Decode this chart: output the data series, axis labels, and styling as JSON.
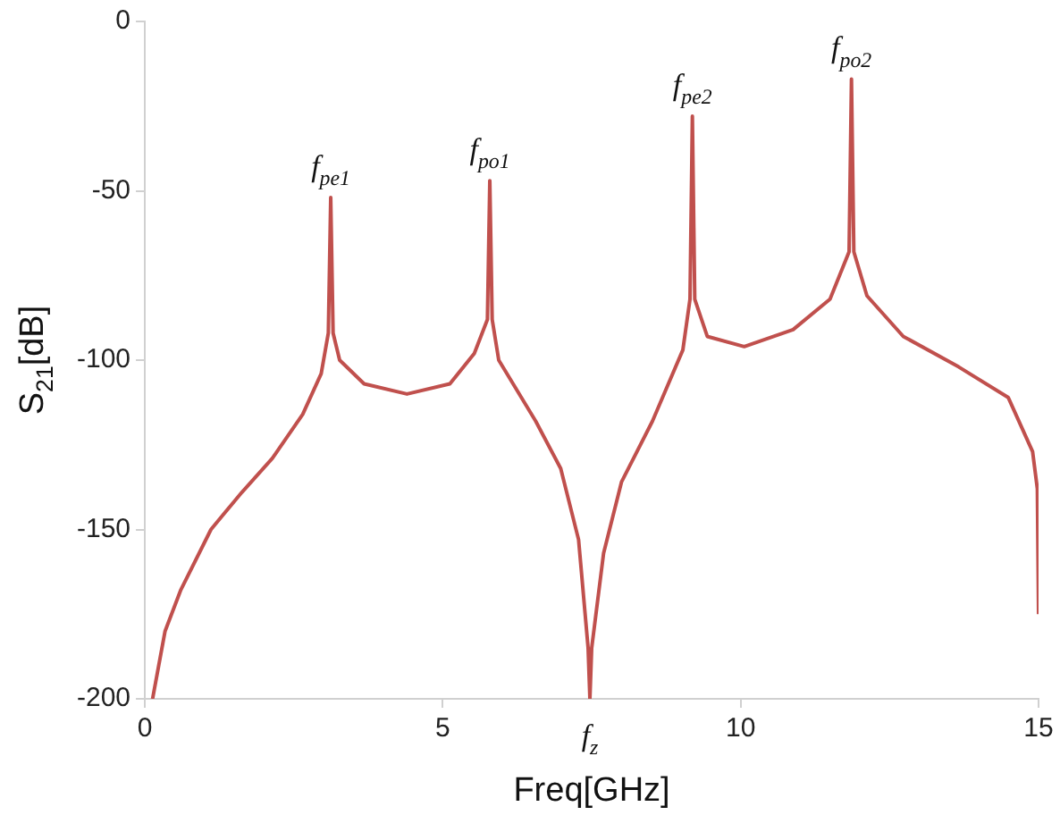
{
  "chart_data": {
    "type": "line",
    "xlabel": "Freq[GHz]",
    "ylabel": "S$_{21}$[dB]",
    "xlim": [
      0,
      15
    ],
    "ylim": [
      -200,
      0
    ],
    "xticks": [
      0,
      5,
      10,
      15
    ],
    "yticks": [
      0,
      -50,
      -100,
      -150,
      -200
    ],
    "grid": false,
    "legend": false,
    "marker": "none",
    "line_style": "solid",
    "annotations": [
      {
        "text": "f$_{pe1}$",
        "x": 3.12,
        "y": -52
      },
      {
        "text": "f$_{po1}$",
        "x": 5.79,
        "y": -47
      },
      {
        "text": "f$_{z}$",
        "x": 7.47,
        "y": -200
      },
      {
        "text": "f$_{pe2}$",
        "x": 9.19,
        "y": -28
      },
      {
        "text": "f$_{po2}$",
        "x": 11.86,
        "y": -17
      }
    ],
    "series": [
      {
        "color": "#c0504d",
        "x": [
          0.13,
          0.34,
          0.6,
          1.11,
          1.63,
          2.14,
          2.65,
          2.96,
          3.08,
          3.12,
          3.16,
          3.27,
          3.68,
          4.4,
          5.12,
          5.53,
          5.75,
          5.79,
          5.83,
          5.94,
          6.56,
          6.98,
          7.28,
          7.44,
          7.47,
          7.5,
          7.7,
          8.0,
          8.52,
          9.03,
          9.15,
          9.19,
          9.23,
          9.44,
          10.06,
          10.88,
          11.5,
          11.82,
          11.86,
          11.9,
          12.12,
          12.73,
          13.66,
          14.49,
          14.9,
          14.98,
          15.0
        ],
        "values": [
          -200,
          -180,
          -168,
          -150,
          -139,
          -129,
          -116,
          -104,
          -92,
          -52,
          -92,
          -100,
          -107,
          -110,
          -107,
          -98,
          -88,
          -47,
          -88,
          -100,
          -118,
          -132,
          -153,
          -185,
          -200,
          -185,
          -157,
          -136,
          -118,
          -97,
          -82,
          -28,
          -82,
          -93,
          -96,
          -91,
          -82,
          -68,
          -17,
          -68,
          -81,
          -93,
          -102,
          -111,
          -127,
          -138,
          -175
        ]
      }
    ]
  }
}
